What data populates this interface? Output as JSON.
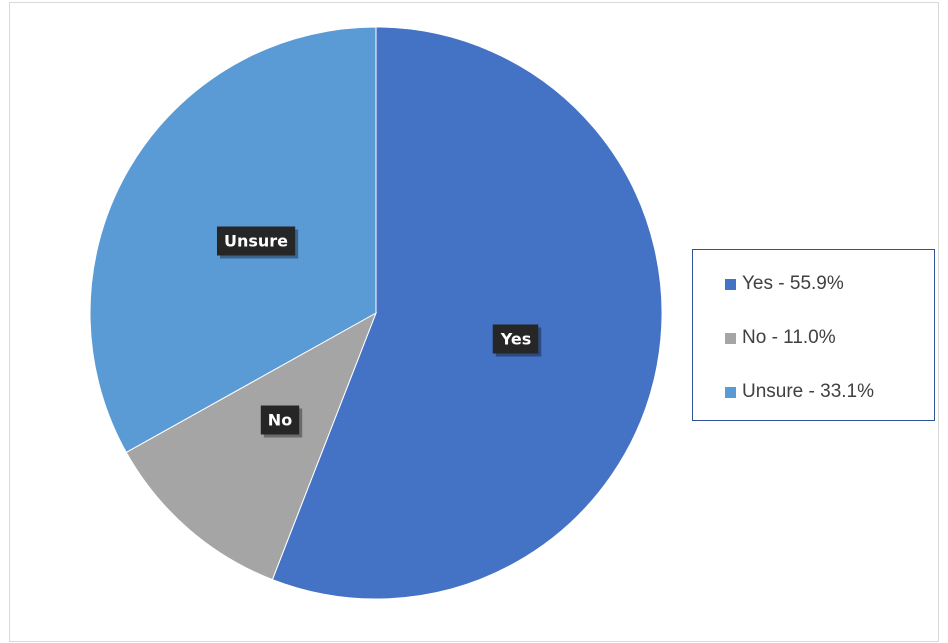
{
  "chart_data": {
    "type": "pie",
    "categories": [
      "Yes",
      "No",
      "Unsure"
    ],
    "values": [
      55.9,
      11.0,
      33.1
    ],
    "slice_labels": [
      "Yes",
      "No",
      "Unsure"
    ],
    "colors": [
      "#4472c4",
      "#a5a5a5",
      "#5b9bd5"
    ],
    "start_angle": "12 o'clock",
    "direction": "clockwise",
    "legend": {
      "placement": "right",
      "entries": [
        "Yes - 55.9%",
        "No - 11.0%",
        "Unsure - 33.1%"
      ]
    }
  }
}
